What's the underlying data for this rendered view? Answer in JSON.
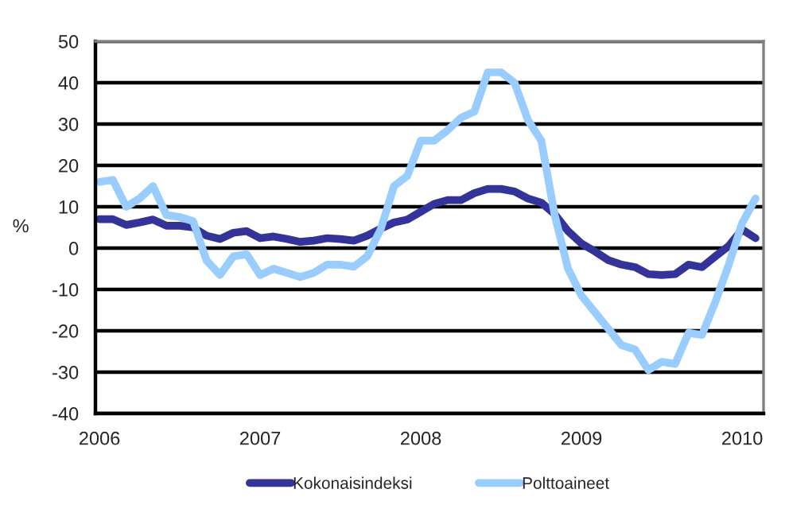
{
  "chart_data": {
    "type": "line",
    "ylabel": "%",
    "categories": [
      "2006",
      null,
      null,
      null,
      null,
      null,
      null,
      null,
      null,
      null,
      null,
      null,
      "2007",
      null,
      null,
      null,
      null,
      null,
      null,
      null,
      null,
      null,
      null,
      null,
      "2008",
      null,
      null,
      null,
      null,
      null,
      null,
      null,
      null,
      null,
      null,
      null,
      "2009",
      null,
      null,
      null,
      null,
      null,
      null,
      null,
      null,
      null,
      null,
      null,
      "2010",
      null
    ],
    "series": [
      {
        "name": "Kokonaisindeksi",
        "color": "#333399",
        "values": [
          7,
          7,
          5.6,
          6.2,
          6.9,
          5.4,
          5.4,
          5,
          3,
          2.2,
          3.7,
          4.1,
          2.4,
          2.8,
          2.2,
          1.5,
          1.8,
          2.4,
          2.2,
          1.8,
          3,
          4.7,
          6.2,
          6.9,
          8.8,
          10.7,
          11.6,
          11.6,
          13.3,
          14.3,
          14.3,
          13.7,
          12,
          11,
          8.2,
          4.1,
          1.1,
          -0.8,
          -2.9,
          -4,
          -4.6,
          -6.3,
          -6.5,
          -6.3,
          -4,
          -4.6,
          -2,
          0.5,
          4.5,
          2.4
        ]
      },
      {
        "name": "Polttoaineet",
        "color": "#99ccff",
        "values": [
          16,
          16.5,
          10,
          12,
          15,
          8,
          7.5,
          6.5,
          -3,
          -6.5,
          -2,
          -1.5,
          -6.5,
          -5,
          -6,
          -7,
          -6,
          -4,
          -4,
          -4.5,
          -2,
          4.5,
          15,
          17.5,
          26,
          26,
          28.5,
          31.5,
          33,
          42.5,
          42.5,
          40,
          31,
          26,
          8,
          -5,
          -11.5,
          -15.5,
          -19.5,
          -23.5,
          -24.5,
          -29.5,
          -27.5,
          -28,
          -20.5,
          -21,
          -13,
          -4,
          6,
          12
        ]
      }
    ],
    "ylim": [
      -40,
      50
    ],
    "yticks": [
      -40,
      -30,
      -20,
      -10,
      0,
      10,
      20,
      30,
      40,
      50
    ],
    "grid": "y",
    "legend": "bottom",
    "marker": "none",
    "line_style": "solid"
  }
}
